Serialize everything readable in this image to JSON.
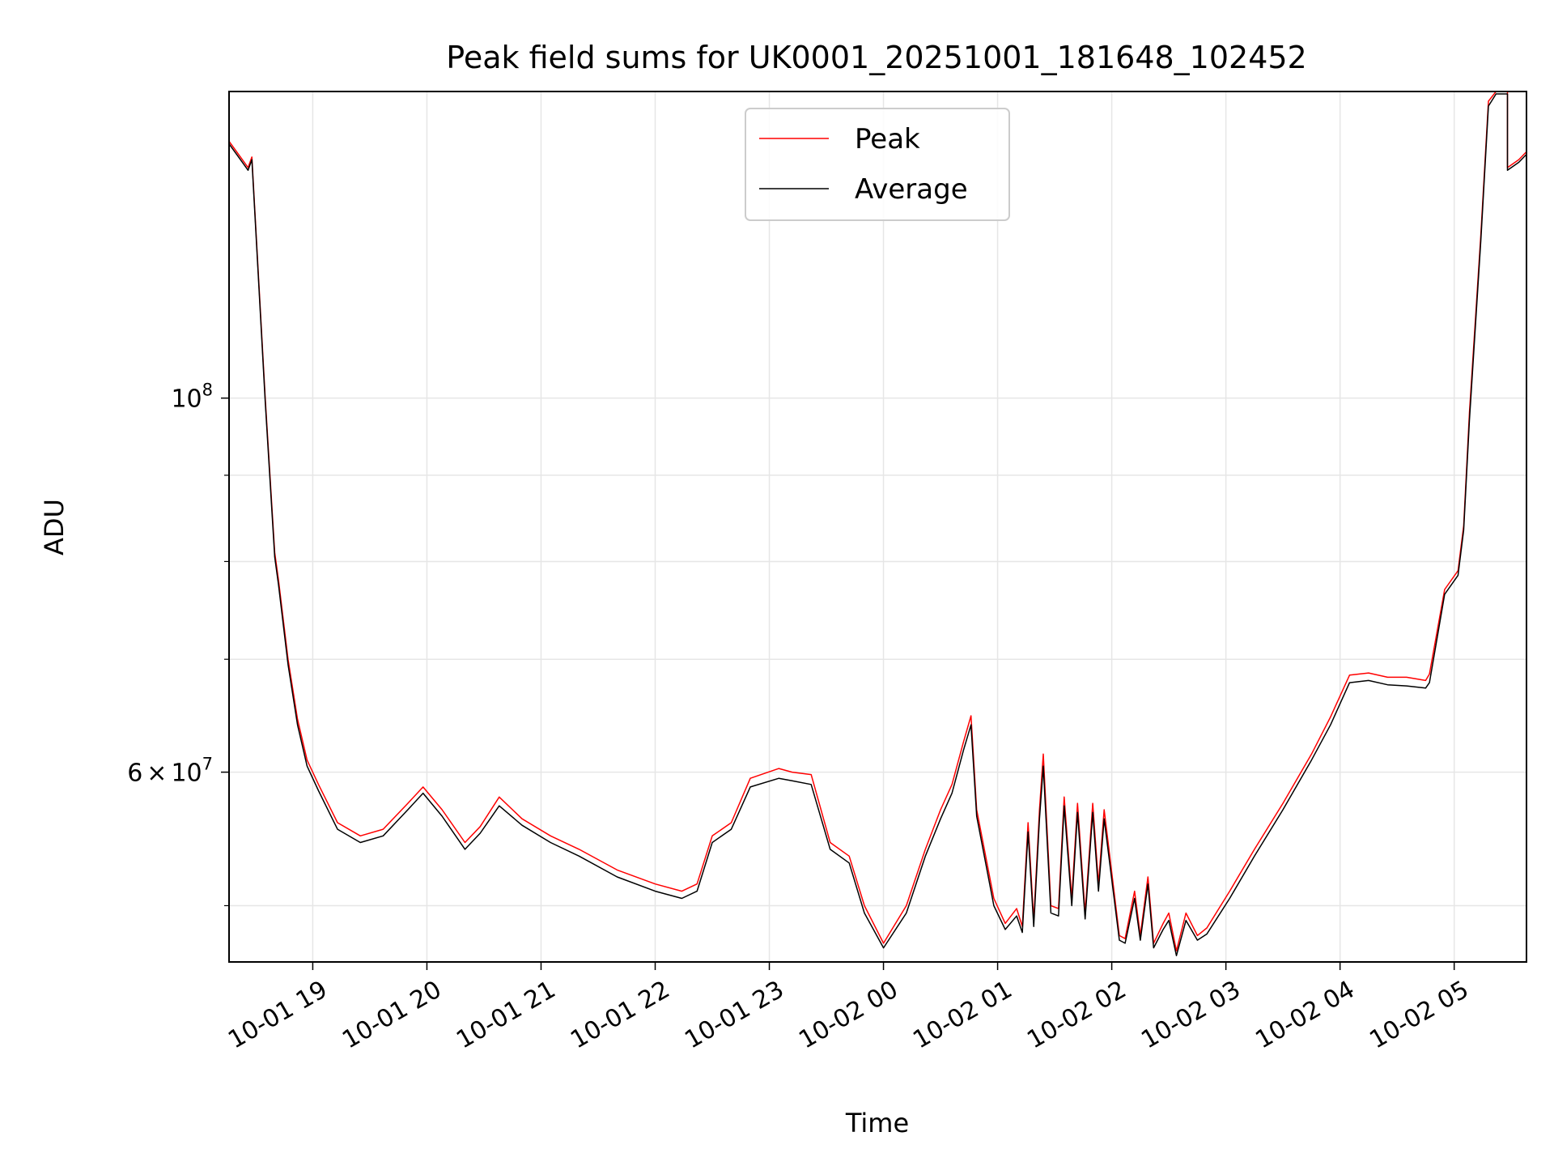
{
  "chart_data": {
    "type": "line",
    "title": "Peak field sums for UK0001_20251001_181648_102452",
    "xlabel": "Time",
    "ylabel": "ADU",
    "yscale": "log",
    "xlim": [
      "2025-10-01 18:16",
      "2025-10-02 05:38"
    ],
    "ylim": [
      46300000,
      152000000
    ],
    "grid": true,
    "legend_position": "top-center",
    "x_ticks": [
      {
        "value": "2025-10-01 19:00",
        "label": "10-01 19"
      },
      {
        "value": "2025-10-01 20:00",
        "label": "10-01 20"
      },
      {
        "value": "2025-10-01 21:00",
        "label": "10-01 21"
      },
      {
        "value": "2025-10-01 22:00",
        "label": "10-01 22"
      },
      {
        "value": "2025-10-01 23:00",
        "label": "10-01 23"
      },
      {
        "value": "2025-10-02 00:00",
        "label": "10-02 00"
      },
      {
        "value": "2025-10-02 01:00",
        "label": "10-02 01"
      },
      {
        "value": "2025-10-02 02:00",
        "label": "10-02 02"
      },
      {
        "value": "2025-10-02 03:00",
        "label": "10-02 03"
      },
      {
        "value": "2025-10-02 04:00",
        "label": "10-02 04"
      },
      {
        "value": "2025-10-02 05:00",
        "label": "10-02 05"
      }
    ],
    "y_major_ticks": [
      {
        "value": 60000000,
        "mantissa": "6",
        "exponent": "7"
      },
      {
        "value": 100000000,
        "mantissa": "",
        "exponent": "8"
      }
    ],
    "y_minor_ticks": [
      50000000,
      70000000,
      80000000,
      90000000
    ],
    "series": [
      {
        "name": "Peak",
        "color": "#ff0000",
        "x": [
          "2025-10-01 18:16",
          "2025-10-01 18:24",
          "2025-10-01 18:26",
          "2025-10-01 18:28",
          "2025-10-01 18:35",
          "2025-10-01 18:40",
          "2025-10-01 18:42",
          "2025-10-01 18:47",
          "2025-10-01 18:52",
          "2025-10-01 18:57",
          "2025-10-01 19:03",
          "2025-10-01 19:13",
          "2025-10-01 19:25",
          "2025-10-01 19:37",
          "2025-10-01 19:50",
          "2025-10-01 19:58",
          "2025-10-01 20:08",
          "2025-10-01 20:20",
          "2025-10-01 20:28",
          "2025-10-01 20:38",
          "2025-10-01 20:50",
          "2025-10-01 21:05",
          "2025-10-01 21:20",
          "2025-10-01 21:40",
          "2025-10-01 22:00",
          "2025-10-01 22:14",
          "2025-10-01 22:22",
          "2025-10-01 22:30",
          "2025-10-01 22:40",
          "2025-10-01 22:50",
          "2025-10-01 23:05",
          "2025-10-01 23:12",
          "2025-10-01 23:22",
          "2025-10-01 23:32",
          "2025-10-01 23:42",
          "2025-10-01 23:50",
          "2025-10-02 00:00",
          "2025-10-02 00:12",
          "2025-10-02 00:22",
          "2025-10-02 00:30",
          "2025-10-02 00:36",
          "2025-10-02 00:42",
          "2025-10-02 00:46",
          "2025-10-02 00:49",
          "2025-10-02 00:58",
          "2025-10-02 01:04",
          "2025-10-02 01:10",
          "2025-10-02 01:13",
          "2025-10-02 01:16",
          "2025-10-02 01:19",
          "2025-10-02 01:22",
          "2025-10-02 01:24",
          "2025-10-02 01:28",
          "2025-10-02 01:32",
          "2025-10-02 01:35",
          "2025-10-02 01:39",
          "2025-10-02 01:42",
          "2025-10-02 01:46",
          "2025-10-02 01:50",
          "2025-10-02 01:53",
          "2025-10-02 01:56",
          "2025-10-02 02:04",
          "2025-10-02 02:07",
          "2025-10-02 02:12",
          "2025-10-02 02:15",
          "2025-10-02 02:19",
          "2025-10-02 02:22",
          "2025-10-02 02:27",
          "2025-10-02 02:30",
          "2025-10-02 02:34",
          "2025-10-02 02:39",
          "2025-10-02 02:45",
          "2025-10-02 02:50",
          "2025-10-02 03:02",
          "2025-10-02 03:15",
          "2025-10-02 03:30",
          "2025-10-02 03:45",
          "2025-10-02 03:55",
          "2025-10-02 04:05",
          "2025-10-02 04:15",
          "2025-10-02 04:25",
          "2025-10-02 04:35",
          "2025-10-02 04:45",
          "2025-10-02 04:47",
          "2025-10-02 04:55",
          "2025-10-02 05:02",
          "2025-10-02 05:05",
          "2025-10-02 05:08",
          "2025-10-02 05:14",
          "2025-10-02 05:18",
          "2025-10-02 05:22",
          "2025-10-02 05:28",
          "2025-10-02 05:28",
          "2025-10-02 05:34",
          "2025-10-02 05:38"
        ],
        "y": [
          142000000,
          138000000,
          137000000,
          139000000,
          100000000,
          81000000,
          78000000,
          70000000,
          64500000,
          61000000,
          59000000,
          56000000,
          55000000,
          55500000,
          57500000,
          58800000,
          57000000,
          54500000,
          55700000,
          58000000,
          56300000,
          55000000,
          54000000,
          52500000,
          51500000,
          51000000,
          51500000,
          55000000,
          56000000,
          59500000,
          60300000,
          60000000,
          59800000,
          54500000,
          53500000,
          50000000,
          47500000,
          50000000,
          54000000,
          57000000,
          59000000,
          62500000,
          64800000,
          57000000,
          50500000,
          48800000,
          49800000,
          48600000,
          56000000,
          49000000,
          57000000,
          61500000,
          50000000,
          49800000,
          58000000,
          50500000,
          57500000,
          49500000,
          57500000,
          51500000,
          57000000,
          48000000,
          47800000,
          51000000,
          48000000,
          52000000,
          47500000,
          48800000,
          49500000,
          47000000,
          49500000,
          48000000,
          48500000,
          51000000,
          54000000,
          57500000,
          61500000,
          64700000,
          68500000,
          68700000,
          68300000,
          68300000,
          68000000,
          68600000,
          77000000,
          79000000,
          84000000,
          98000000,
          125000000,
          150000000,
          152000000,
          152000000,
          137000000,
          138500000,
          140000000
        ]
      },
      {
        "name": "Average",
        "color": "#000000",
        "x": [
          "2025-10-01 18:16",
          "2025-10-01 18:24",
          "2025-10-01 18:26",
          "2025-10-01 18:28",
          "2025-10-01 18:35",
          "2025-10-01 18:40",
          "2025-10-01 18:42",
          "2025-10-01 18:47",
          "2025-10-01 18:52",
          "2025-10-01 18:57",
          "2025-10-01 19:03",
          "2025-10-01 19:13",
          "2025-10-01 19:25",
          "2025-10-01 19:37",
          "2025-10-01 19:50",
          "2025-10-01 19:58",
          "2025-10-01 20:08",
          "2025-10-01 20:20",
          "2025-10-01 20:28",
          "2025-10-01 20:38",
          "2025-10-01 20:50",
          "2025-10-01 21:05",
          "2025-10-01 21:20",
          "2025-10-01 21:40",
          "2025-10-01 22:00",
          "2025-10-01 22:14",
          "2025-10-01 22:22",
          "2025-10-01 22:30",
          "2025-10-01 22:40",
          "2025-10-01 22:50",
          "2025-10-01 23:05",
          "2025-10-01 23:12",
          "2025-10-01 23:22",
          "2025-10-01 23:32",
          "2025-10-01 23:42",
          "2025-10-01 23:50",
          "2025-10-02 00:00",
          "2025-10-02 00:12",
          "2025-10-02 00:22",
          "2025-10-02 00:30",
          "2025-10-02 00:36",
          "2025-10-02 00:42",
          "2025-10-02 00:46",
          "2025-10-02 00:49",
          "2025-10-02 00:58",
          "2025-10-02 01:04",
          "2025-10-02 01:10",
          "2025-10-02 01:13",
          "2025-10-02 01:16",
          "2025-10-02 01:19",
          "2025-10-02 01:22",
          "2025-10-02 01:24",
          "2025-10-02 01:28",
          "2025-10-02 01:32",
          "2025-10-02 01:35",
          "2025-10-02 01:39",
          "2025-10-02 01:42",
          "2025-10-02 01:46",
          "2025-10-02 01:50",
          "2025-10-02 01:53",
          "2025-10-02 01:56",
          "2025-10-02 02:04",
          "2025-10-02 02:07",
          "2025-10-02 02:12",
          "2025-10-02 02:15",
          "2025-10-02 02:19",
          "2025-10-02 02:22",
          "2025-10-02 02:27",
          "2025-10-02 02:30",
          "2025-10-02 02:34",
          "2025-10-02 02:39",
          "2025-10-02 02:45",
          "2025-10-02 02:50",
          "2025-10-02 03:02",
          "2025-10-02 03:15",
          "2025-10-02 03:30",
          "2025-10-02 03:45",
          "2025-10-02 03:55",
          "2025-10-02 04:05",
          "2025-10-02 04:15",
          "2025-10-02 04:25",
          "2025-10-02 04:35",
          "2025-10-02 04:45",
          "2025-10-02 04:47",
          "2025-10-02 04:55",
          "2025-10-02 05:02",
          "2025-10-02 05:05",
          "2025-10-02 05:08",
          "2025-10-02 05:14",
          "2025-10-02 05:18",
          "2025-10-02 05:22",
          "2025-10-02 05:28",
          "2025-10-02 05:28",
          "2025-10-02 05:34",
          "2025-10-02 05:38"
        ],
        "y": [
          141500000,
          137500000,
          136500000,
          138500000,
          99500000,
          80500000,
          77500000,
          69500000,
          64000000,
          60500000,
          58500000,
          55500000,
          54500000,
          55000000,
          57000000,
          58300000,
          56500000,
          54000000,
          55200000,
          57300000,
          55800000,
          54500000,
          53500000,
          52000000,
          51000000,
          50500000,
          51000000,
          54500000,
          55500000,
          58800000,
          59500000,
          59300000,
          59000000,
          54000000,
          53000000,
          49500000,
          47200000,
          49500000,
          53500000,
          56300000,
          58300000,
          61800000,
          64000000,
          56500000,
          50000000,
          48400000,
          49300000,
          48200000,
          55300000,
          48600000,
          56300000,
          60500000,
          49500000,
          49300000,
          57300000,
          50000000,
          56800000,
          49100000,
          56800000,
          51000000,
          56300000,
          47700000,
          47500000,
          50500000,
          47700000,
          51500000,
          47200000,
          48400000,
          49000000,
          46700000,
          49000000,
          47700000,
          48100000,
          50500000,
          53500000,
          57000000,
          61000000,
          64000000,
          67800000,
          68000000,
          67600000,
          67500000,
          67300000,
          67800000,
          76500000,
          78500000,
          83500000,
          97000000,
          124000000,
          149000000,
          151500000,
          151500000,
          136500000,
          138000000,
          139500000
        ]
      }
    ]
  }
}
